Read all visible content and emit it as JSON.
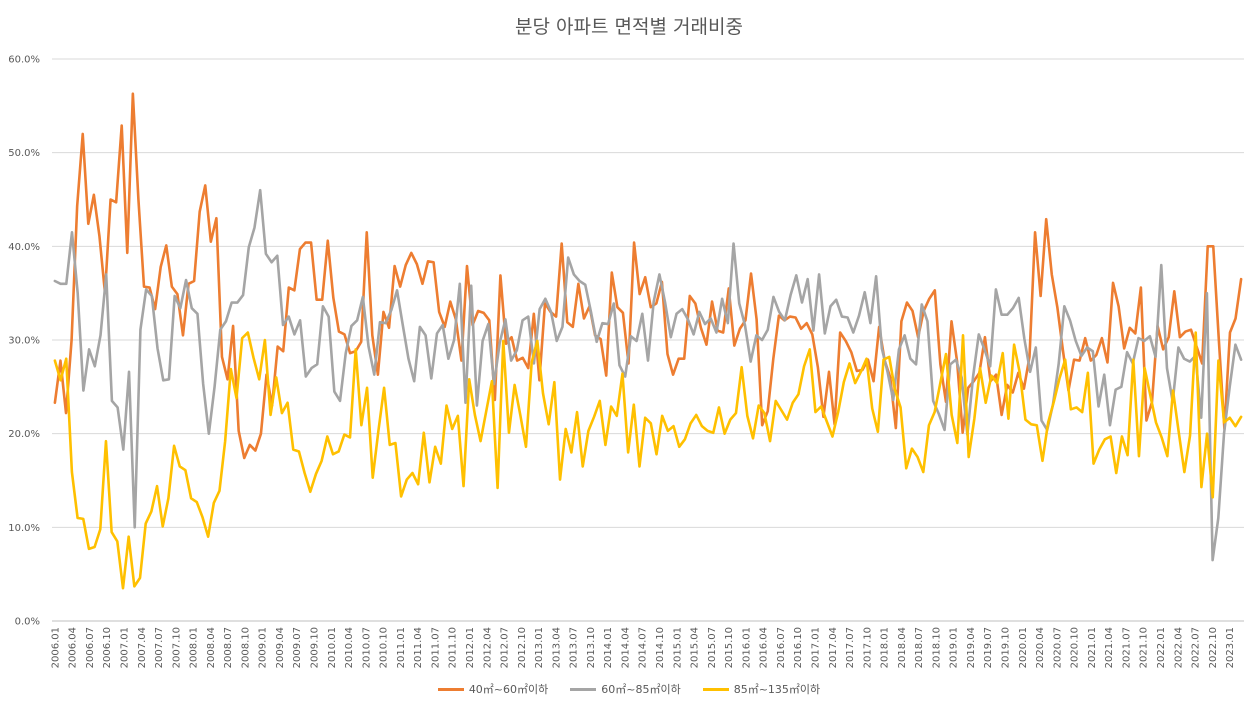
{
  "chart_data": {
    "type": "line",
    "title": "분당 아파트 면적별 거래비중",
    "xlabel": "",
    "ylabel": "",
    "ylim": [
      0,
      60
    ],
    "y_ticks": [
      "0.0%",
      "10.0%",
      "20.0%",
      "30.0%",
      "40.0%",
      "50.0%",
      "60.0%"
    ],
    "grid": true,
    "legend_position": "bottom",
    "start": "2006.01",
    "end": "2023.03",
    "tick_labels": [
      "2006.01",
      "2006.04",
      "2006.07",
      "2006.10",
      "2007.01",
      "2007.04",
      "2007.07",
      "2007.10",
      "2008.01",
      "2008.04",
      "2008.07",
      "2008.10",
      "2009.01",
      "2009.04",
      "2009.07",
      "2009.10",
      "2010.01",
      "2010.04",
      "2010.07",
      "2010.10",
      "2011.01",
      "2011.04",
      "2011.07",
      "2011.10",
      "2012.01",
      "2012.04",
      "2012.07",
      "2012.10",
      "2013.01",
      "2013.04",
      "2013.07",
      "2013.10",
      "2014.01",
      "2014.04",
      "2014.07",
      "2014.10",
      "2015.01",
      "2015.04",
      "2015.07",
      "2015.10",
      "2016.01",
      "2016.04",
      "2016.07",
      "2016.10",
      "2017.01",
      "2017.04",
      "2017.07",
      "2017.10",
      "2018.01",
      "2018.04",
      "2018.07",
      "2018.10",
      "2019.01",
      "2019.04",
      "2019.07",
      "2019.10",
      "2020.01",
      "2020.04",
      "2020.07",
      "2020.10",
      "2021.01",
      "2021.04",
      "2021.07",
      "2021.10",
      "2022.01",
      "2022.04",
      "2022.07",
      "2022.10",
      "2023.01"
    ],
    "series": [
      {
        "name": "40㎡~60㎡이하",
        "color": "#ED7D31",
        "values": [
          23.3,
          27.8,
          22.2,
          30.0,
          44.3,
          52.0,
          42.4,
          45.5,
          41.1,
          35.0,
          45.0,
          44.7,
          52.9,
          39.3,
          56.3,
          45.0,
          35.7,
          35.6,
          33.3,
          37.8,
          40.1,
          35.7,
          34.9,
          30.5,
          36.0,
          36.3,
          43.7,
          46.5,
          40.5,
          43.0,
          28.2,
          25.8,
          31.5,
          20.3,
          17.4,
          18.8,
          18.2,
          20.0,
          26.3,
          23.0,
          29.3,
          28.8,
          35.6,
          35.3,
          39.7,
          40.4,
          40.4,
          34.3,
          34.3,
          40.6,
          34.5,
          30.9,
          30.6,
          28.6,
          28.8,
          29.8,
          41.5,
          30.5,
          26.3,
          33.0,
          31.3,
          37.9,
          35.7,
          38.0,
          39.3,
          38.1,
          36.0,
          38.4,
          38.3,
          33.0,
          31.4,
          34.1,
          32.2,
          27.8,
          37.9,
          31.6,
          33.1,
          32.9,
          32.1,
          23.6,
          36.9,
          29.6,
          30.3,
          27.8,
          28.1,
          27.0,
          32.8,
          25.7,
          33.9,
          33.0,
          32.5,
          40.3,
          31.9,
          31.4,
          36.0,
          32.3,
          33.6,
          30.5,
          30.1,
          26.2,
          37.2,
          33.5,
          32.9,
          27.5,
          40.4,
          34.9,
          36.7,
          33.5,
          33.9,
          36.2,
          28.5,
          26.3,
          28.0,
          28.0,
          34.7,
          33.9,
          31.3,
          29.5,
          34.1,
          31.0,
          30.8,
          35.5,
          29.4,
          31.2,
          32.1,
          37.1,
          32.2,
          20.9,
          22.4,
          28.0,
          32.6,
          32.1,
          32.5,
          32.4,
          31.2,
          31.8,
          30.6,
          27.1,
          21.8,
          26.6,
          21.0,
          30.8,
          29.9,
          28.7,
          26.7,
          26.8,
          27.9,
          25.6,
          31.4,
          27.8,
          26.0,
          20.6,
          32.0,
          34.0,
          33.1,
          30.3,
          33.1,
          34.4,
          35.3,
          27.4,
          23.4,
          32.0,
          27.7,
          20.1,
          24.9,
          25.6,
          26.5,
          30.3,
          25.6,
          26.3,
          22.0,
          25.2,
          24.4,
          26.5,
          24.8,
          28.2,
          41.5,
          34.7,
          42.9,
          37.0,
          33.5,
          28.9,
          24.6,
          27.9,
          27.8,
          30.2,
          27.8,
          28.4,
          30.2,
          27.6,
          36.1,
          33.6,
          29.1,
          31.3,
          30.7,
          35.6,
          21.4,
          23.4,
          31.5,
          29.0,
          30.3,
          35.2,
          30.3,
          30.9,
          31.1,
          29.3,
          27.5,
          40.0,
          40.0,
          30.0,
          20.5,
          30.8,
          32.3,
          36.5
        ]
      },
      {
        "name": "60㎡~85㎡이하",
        "color": "#A5A5A5",
        "values": [
          36.3,
          36.0,
          36.0,
          41.5,
          35.0,
          24.6,
          29.0,
          27.2,
          30.5,
          37.0,
          23.5,
          22.8,
          18.3,
          26.6,
          10.0,
          31.1,
          35.4,
          34.7,
          29.1,
          25.7,
          25.8,
          34.7,
          33.4,
          36.4,
          33.4,
          32.8,
          25.3,
          20.0,
          25.0,
          31.1,
          32.0,
          34.0,
          34.0,
          34.8,
          39.9,
          42.0,
          46.0,
          39.2,
          38.3,
          39.0,
          31.6,
          32.5,
          30.6,
          32.1,
          26.1,
          27.0,
          27.4,
          33.6,
          32.5,
          24.5,
          23.5,
          28.6,
          31.5,
          32.1,
          34.6,
          29.3,
          26.3,
          31.9,
          31.8,
          33.2,
          35.3,
          31.6,
          28.0,
          25.6,
          31.4,
          30.5,
          25.9,
          30.7,
          31.6,
          28.0,
          30.0,
          36.0,
          23.3,
          35.8,
          23.0,
          29.9,
          31.7,
          25.3,
          29.7,
          32.2,
          27.8,
          28.9,
          32.1,
          32.5,
          27.5,
          33.3,
          34.4,
          33.0,
          29.9,
          31.4,
          38.8,
          37.0,
          36.3,
          35.9,
          33.0,
          29.8,
          31.8,
          31.7,
          33.9,
          27.3,
          26.1,
          30.4,
          29.9,
          32.8,
          27.8,
          34.1,
          37.0,
          34.0,
          30.3,
          32.8,
          33.3,
          32.2,
          30.6,
          33.0,
          31.7,
          32.3,
          30.8,
          34.4,
          31.8,
          40.3,
          33.9,
          31.6,
          27.7,
          30.5,
          30.0,
          31.1,
          34.6,
          33.0,
          32.1,
          34.8,
          36.9,
          34.0,
          36.5,
          31.0,
          37.0,
          30.7,
          33.6,
          34.3,
          32.5,
          32.4,
          30.8,
          32.6,
          35.1,
          31.8,
          36.8,
          29.1,
          26.6,
          23.6,
          29.0,
          30.5,
          28.0,
          27.4,
          33.8,
          32.0,
          23.5,
          22.1,
          20.4,
          27.4,
          27.9,
          26.0,
          19.9,
          26.1,
          30.6,
          29.0,
          27.2,
          35.4,
          32.7,
          32.7,
          33.4,
          34.5,
          30.1,
          26.6,
          29.2,
          21.4,
          20.4,
          23.1,
          27.4,
          33.6,
          32.1,
          29.9,
          28.3,
          29.2,
          28.8,
          22.9,
          26.3,
          20.9,
          24.7,
          25.0,
          28.7,
          27.5,
          30.2,
          29.9,
          30.4,
          28.2,
          38.0,
          27.0,
          23.4,
          29.2,
          28.0,
          27.7,
          28.3,
          21.7,
          35.0,
          6.5,
          11.0,
          20.0,
          25.0,
          29.5,
          27.9
        ]
      },
      {
        "name": "85㎡~135㎡이하",
        "color": "#FFC000",
        "values": [
          27.8,
          25.7,
          28.0,
          15.9,
          11.0,
          10.9,
          7.7,
          7.9,
          9.8,
          19.2,
          9.5,
          8.5,
          3.5,
          9.0,
          3.7,
          4.6,
          10.4,
          11.7,
          14.4,
          10.1,
          13.1,
          18.7,
          16.5,
          16.1,
          13.1,
          12.7,
          11.1,
          9.0,
          12.6,
          13.9,
          19.2,
          26.9,
          23.8,
          30.2,
          30.8,
          28.1,
          25.8,
          30.0,
          22.0,
          26.0,
          22.2,
          23.3,
          18.3,
          18.1,
          15.8,
          13.8,
          15.7,
          17.1,
          19.7,
          17.8,
          18.1,
          19.9,
          19.6,
          29.0,
          20.9,
          24.9,
          15.3,
          20.3,
          24.9,
          18.8,
          19.0,
          13.3,
          15.1,
          15.8,
          14.6,
          20.1,
          14.8,
          18.6,
          16.8,
          23.0,
          20.5,
          21.9,
          14.4,
          25.8,
          22.0,
          19.2,
          22.4,
          25.6,
          14.2,
          29.9,
          20.1,
          25.2,
          22.0,
          18.6,
          27.6,
          29.9,
          24.3,
          21.0,
          25.5,
          15.1,
          20.5,
          18.0,
          22.3,
          16.5,
          20.3,
          21.8,
          23.5,
          18.8,
          22.9,
          21.9,
          26.4,
          18.0,
          23.1,
          16.5,
          21.7,
          21.1,
          17.8,
          21.9,
          20.3,
          20.8,
          18.6,
          19.4,
          21.1,
          22.0,
          20.8,
          20.3,
          20.1,
          22.8,
          20.0,
          21.5,
          22.2,
          27.1,
          21.9,
          19.5,
          23.0,
          22.2,
          19.2,
          23.5,
          22.5,
          21.5,
          23.3,
          24.2,
          27.2,
          29.0,
          22.3,
          22.9,
          21.3,
          19.7,
          22.3,
          25.5,
          27.5,
          25.4,
          26.6,
          28.0,
          22.7,
          20.2,
          27.9,
          28.2,
          24.7,
          22.8,
          16.3,
          18.4,
          17.5,
          15.9,
          20.9,
          22.3,
          25.4,
          28.5,
          22.0,
          19.0,
          30.5,
          17.5,
          21.6,
          27.0,
          23.3,
          26.2,
          25.4,
          28.6,
          21.6,
          29.5,
          26.5,
          21.5,
          21.0,
          20.9,
          17.1,
          21.2,
          23.4,
          25.9,
          27.9,
          22.6,
          22.8,
          22.3,
          26.5,
          16.8,
          18.3,
          19.4,
          19.7,
          15.8,
          19.7,
          17.7,
          27.9,
          17.6,
          27.0,
          24.1,
          21.2,
          19.6,
          17.6,
          24.6,
          20.2,
          15.9,
          19.8,
          30.8,
          14.3,
          20.0,
          13.2,
          27.8,
          21.2,
          21.7,
          20.8,
          21.8
        ]
      }
    ]
  }
}
